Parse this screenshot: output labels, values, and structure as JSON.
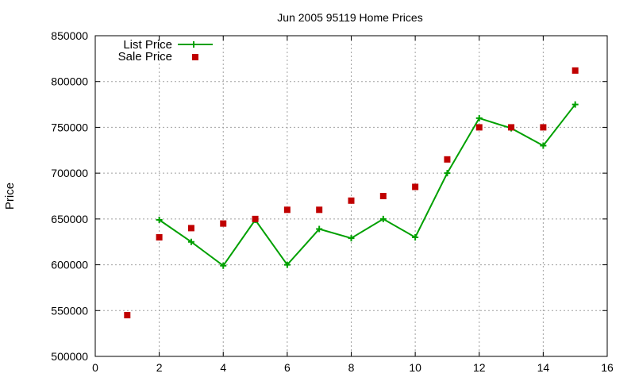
{
  "chart_data": {
    "type": "line",
    "title": "Jun 2005 95119 Home Prices",
    "xlabel": "",
    "ylabel": "Price",
    "xlim": [
      0,
      16
    ],
    "ylim": [
      500000,
      850000
    ],
    "x_ticks": [
      0,
      2,
      4,
      6,
      8,
      10,
      12,
      14,
      16
    ],
    "y_ticks": [
      500000,
      550000,
      600000,
      650000,
      700000,
      750000,
      800000,
      850000
    ],
    "grid": true,
    "legend_position": "top-left",
    "series": [
      {
        "name": "List Price",
        "style": "line-with-plus-markers",
        "color": "#00a000",
        "x": [
          2,
          3,
          4,
          5,
          6,
          7,
          8,
          9,
          10,
          11,
          12,
          13,
          14,
          15
        ],
        "values": [
          649000,
          625000,
          599000,
          649000,
          600000,
          639000,
          629000,
          650000,
          630000,
          700000,
          760000,
          749000,
          730000,
          775000
        ]
      },
      {
        "name": "Sale Price",
        "style": "square-markers",
        "color": "#c00000",
        "x": [
          1,
          2,
          3,
          4,
          5,
          6,
          7,
          8,
          9,
          10,
          11,
          12,
          13,
          14,
          15
        ],
        "values": [
          545000,
          630000,
          640000,
          645000,
          650000,
          660000,
          660000,
          670000,
          675000,
          685000,
          715000,
          750000,
          750000,
          750000,
          812000
        ]
      }
    ]
  }
}
